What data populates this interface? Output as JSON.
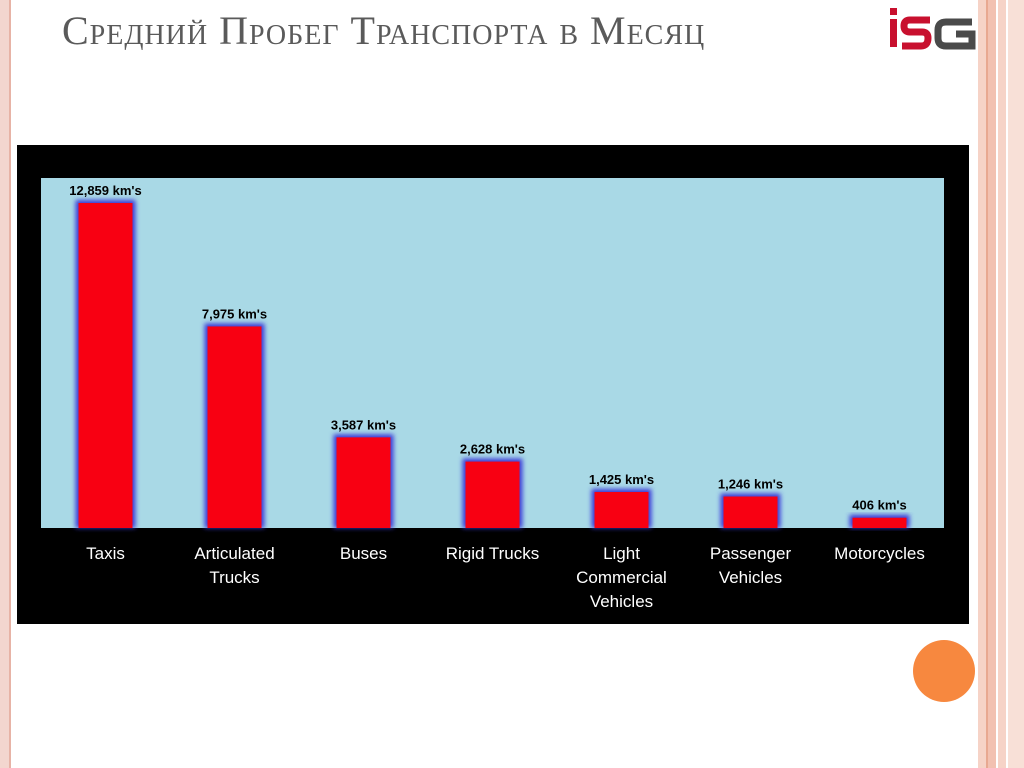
{
  "slide": {
    "title": "Средний Пробег Транспорта в Месяц",
    "logo_text": "iSG"
  },
  "colors": {
    "bar_fill": "#f80012",
    "bar_glow": "#3b3bd8",
    "plot_background": "#a9d9e6",
    "frame": "#000000",
    "label_text": "#ffffff",
    "accent_dot": "#f7883f",
    "logo_red": "#c8102e",
    "logo_gray": "#4a4a4a"
  },
  "chart_data": {
    "type": "bar",
    "categories": [
      "Taxis",
      "Articulated Trucks",
      "Buses",
      "Rigid Trucks",
      "Light Commercial Vehicles",
      "Passenger Vehicles",
      "Motorcycles"
    ],
    "category_lines": [
      [
        "Taxis"
      ],
      [
        "Articulated",
        "Trucks"
      ],
      [
        "Buses"
      ],
      [
        "Rigid Trucks"
      ],
      [
        "Light",
        "Commercial",
        "Vehicles"
      ],
      [
        "Passenger",
        "Vehicles"
      ],
      [
        "Motorcycles"
      ]
    ],
    "values": [
      12859,
      7975,
      3587,
      2628,
      1425,
      1246,
      406
    ],
    "data_labels": [
      "12,859 km's",
      "7,975 km's",
      "3,587 km's",
      "2,628 km's",
      "1,425 km's",
      "1,246 km's",
      "406 km's"
    ],
    "unit": "km's",
    "title": "",
    "xlabel": "",
    "ylabel": "",
    "ylim": [
      0,
      13500
    ],
    "grid": false,
    "legend": "none"
  }
}
